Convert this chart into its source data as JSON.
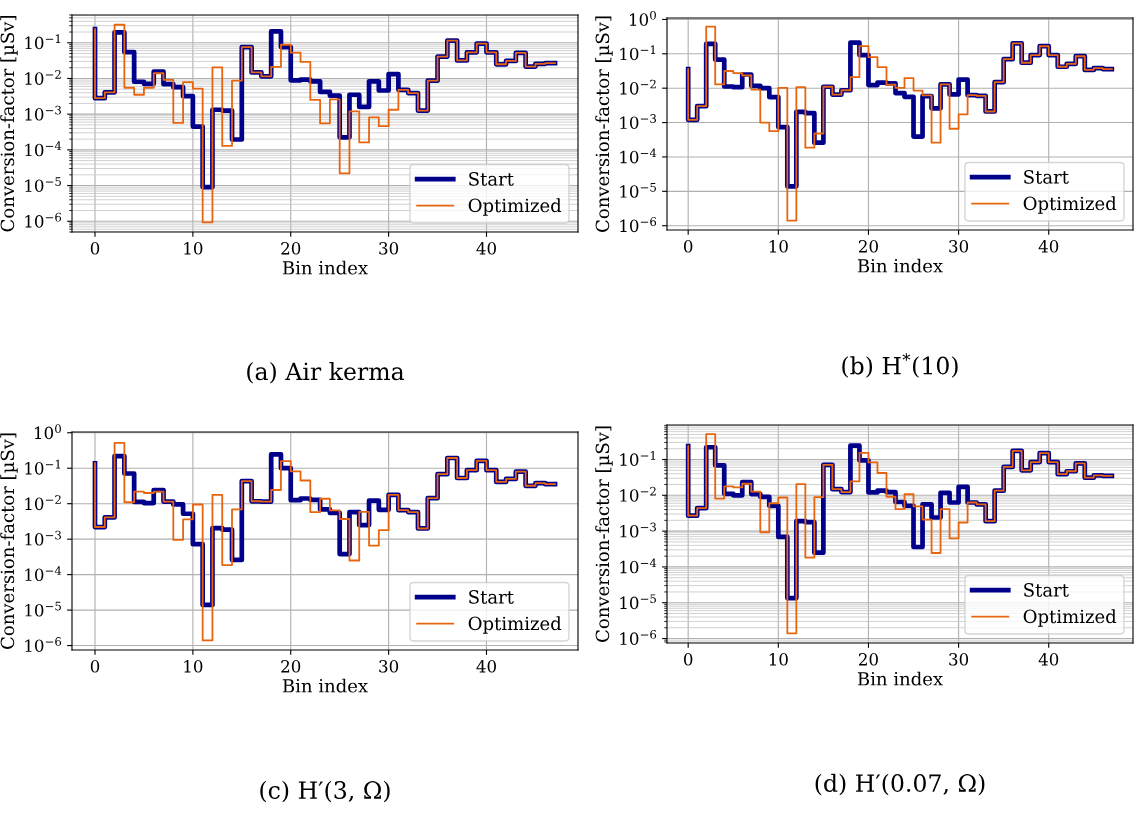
{
  "chart_data": [
    {
      "type": "step",
      "title": "(a) Air kerma",
      "xlabel": "Bin index",
      "ylabel": "Conversion-factor [µSv]",
      "log": "y",
      "grid": true,
      "legend": "bottom right",
      "x": [
        0,
        1,
        2,
        3,
        4,
        5,
        6,
        7,
        8,
        9,
        10,
        11,
        12,
        13,
        14,
        15,
        16,
        17,
        18,
        19,
        20,
        21,
        22,
        23,
        24,
        25,
        26,
        27,
        28,
        29,
        30,
        31,
        32,
        33,
        34,
        35,
        36,
        37,
        38,
        39,
        40,
        41,
        42,
        43,
        44,
        45,
        46,
        47
      ],
      "xlim": [
        -2.35,
        49.35
      ],
      "xticks": [
        0,
        10,
        20,
        30,
        40
      ],
      "ylim": [
        5e-07,
        0.6
      ],
      "yticks": [
        {
          "value": 1e-06,
          "label": "10$^{−6}$"
        },
        {
          "value": 1e-05,
          "label": "10$^{−5}$"
        },
        {
          "value": 0.0001,
          "label": "10$^{−4}$"
        },
        {
          "value": 0.001,
          "label": "10$^{−3}$"
        },
        {
          "value": 0.01,
          "label": "10$^{−2}$"
        },
        {
          "value": 0.1,
          "label": "10$^{−1}$"
        }
      ],
      "series": [
        {
          "name": "Start",
          "color": "#00008b",
          "values": [
            0.24,
            0.0028,
            0.0041,
            0.195,
            0.055,
            0.0081,
            0.0071,
            0.0155,
            0.0069,
            0.0057,
            0.0032,
            0.00045,
            9.1e-06,
            0.00133,
            0.00126,
            0.000195,
            0.076,
            0.0148,
            0.0115,
            0.21,
            0.076,
            0.0089,
            0.0093,
            0.0083,
            0.0042,
            0.0033,
            0.000224,
            0.0035,
            0.0016,
            0.0083,
            0.0046,
            0.0133,
            0.0048,
            0.0039,
            0.00126,
            0.0087,
            0.041,
            0.115,
            0.032,
            0.054,
            0.095,
            0.054,
            0.025,
            0.031,
            0.052,
            0.0215,
            0.0257,
            0.027
          ]
        },
        {
          "name": "Optimized",
          "color": "#e8650f",
          "values": [
            0.24,
            0.0028,
            0.0041,
            0.32,
            0.0055,
            0.0035,
            0.0055,
            0.014,
            0.0091,
            0.00057,
            0.0079,
            0.0052,
            9.3e-07,
            0.0205,
            0.000129,
            0.0087,
            0.076,
            0.0148,
            0.0115,
            0.021,
            0.088,
            0.053,
            0.029,
            0.0025,
            0.00055,
            0.0026,
            2.2e-05,
            0.0012,
            0.000162,
            0.00081,
            0.00046,
            0.00133,
            0.0048,
            0.0039,
            0.00126,
            0.0087,
            0.041,
            0.115,
            0.032,
            0.054,
            0.095,
            0.054,
            0.025,
            0.031,
            0.052,
            0.0215,
            0.0257,
            0.027
          ]
        }
      ]
    },
    {
      "type": "step",
      "title": "(b) H$^{*}$(10)",
      "xlabel": "Bin index",
      "ylabel": "Conversion-factor [µSv]",
      "log": "y",
      "grid": true,
      "legend": "bottom right",
      "x": [
        0,
        1,
        2,
        3,
        4,
        5,
        6,
        7,
        8,
        9,
        10,
        11,
        12,
        13,
        14,
        15,
        16,
        17,
        18,
        19,
        20,
        21,
        22,
        23,
        24,
        25,
        26,
        27,
        28,
        29,
        30,
        31,
        32,
        33,
        34,
        35,
        36,
        37,
        38,
        39,
        40,
        41,
        42,
        43,
        44,
        45,
        46,
        47
      ],
      "xlim": [
        -2.35,
        49.35
      ],
      "xticks": [
        0,
        10,
        20,
        30,
        40
      ],
      "ylim": [
        7.5e-07,
        1.1
      ],
      "yticks": [
        {
          "value": 1e-06,
          "label": "10$^{−6}$"
        },
        {
          "value": 1e-05,
          "label": "10$^{−5}$"
        },
        {
          "value": 0.0001,
          "label": "10$^{−4}$"
        },
        {
          "value": 0.001,
          "label": "10$^{−3}$"
        },
        {
          "value": 0.01,
          "label": "10$^{−2}$"
        },
        {
          "value": 0.1,
          "label": "10$^{−1}$"
        },
        {
          "value": 1,
          "label": "10$^{0}$"
        }
      ],
      "series": [
        {
          "name": "Start",
          "color": "#00008b",
          "values": [
            0.036,
            0.0012,
            0.003,
            0.195,
            0.068,
            0.0112,
            0.0107,
            0.025,
            0.0117,
            0.01,
            0.0055,
            0.00074,
            1.4e-05,
            0.00204,
            0.00188,
            0.00026,
            0.011,
            0.0065,
            0.0087,
            0.21,
            0.092,
            0.0123,
            0.0145,
            0.0138,
            0.0072,
            0.0056,
            0.00039,
            0.0059,
            0.0026,
            0.0129,
            0.0066,
            0.0178,
            0.0063,
            0.006,
            0.0021,
            0.015,
            0.07,
            0.2,
            0.055,
            0.092,
            0.166,
            0.092,
            0.042,
            0.051,
            0.085,
            0.034,
            0.0385,
            0.036
          ]
        },
        {
          "name": "Optimized",
          "color": "#e8650f",
          "values": [
            0.036,
            0.0012,
            0.003,
            0.62,
            0.0129,
            0.0316,
            0.0275,
            0.0234,
            0.0091,
            0.001,
            0.00056,
            0.0102,
            1.4e-06,
            0.0107,
            0.000186,
            0.00048,
            0.011,
            0.0065,
            0.0087,
            0.021,
            0.168,
            0.08,
            0.041,
            0.0126,
            0.0102,
            0.0195,
            0.0085,
            0.0062,
            0.00026,
            0.0129,
            0.00066,
            0.00174,
            0.0063,
            0.006,
            0.0021,
            0.015,
            0.07,
            0.2,
            0.055,
            0.092,
            0.166,
            0.092,
            0.042,
            0.051,
            0.085,
            0.034,
            0.0385,
            0.036
          ]
        }
      ]
    },
    {
      "type": "step",
      "title": "(c) H′(3, Ω)",
      "xlabel": "Bin index",
      "ylabel": "Conversion-factor [µSv]",
      "log": "y",
      "grid": true,
      "legend": "bottom right",
      "x": [
        0,
        1,
        2,
        3,
        4,
        5,
        6,
        7,
        8,
        9,
        10,
        11,
        12,
        13,
        14,
        15,
        16,
        17,
        18,
        19,
        20,
        21,
        22,
        23,
        24,
        25,
        26,
        27,
        28,
        29,
        30,
        31,
        32,
        33,
        34,
        35,
        36,
        37,
        38,
        39,
        40,
        41,
        42,
        43,
        44,
        45,
        46,
        47
      ],
      "xlim": [
        -2.35,
        49.35
      ],
      "xticks": [
        0,
        10,
        20,
        30,
        40
      ],
      "ylim": [
        7.5e-07,
        1.05
      ],
      "yticks": [
        {
          "value": 1e-06,
          "label": "10$^{−6}$"
        },
        {
          "value": 1e-05,
          "label": "10$^{−5}$"
        },
        {
          "value": 0.0001,
          "label": "10$^{−4}$"
        },
        {
          "value": 0.001,
          "label": "10$^{−3}$"
        },
        {
          "value": 0.01,
          "label": "10$^{−2}$"
        },
        {
          "value": 0.1,
          "label": "10$^{−1}$"
        },
        {
          "value": 1,
          "label": "10$^{0}$"
        }
      ],
      "series": [
        {
          "name": "Start",
          "color": "#00008b",
          "values": [
            0.138,
            0.0022,
            0.0041,
            0.22,
            0.071,
            0.0112,
            0.0104,
            0.0243,
            0.0115,
            0.0095,
            0.0052,
            0.00072,
            1.4e-05,
            0.00204,
            0.00186,
            0.00026,
            0.0435,
            0.0117,
            0.0115,
            0.245,
            0.1,
            0.0126,
            0.014,
            0.0129,
            0.0069,
            0.0055,
            0.00038,
            0.0058,
            0.0025,
            0.0122,
            0.0067,
            0.0177,
            0.0066,
            0.0058,
            0.002,
            0.0143,
            0.068,
            0.194,
            0.053,
            0.088,
            0.162,
            0.088,
            0.041,
            0.05,
            0.08,
            0.032,
            0.038,
            0.0355
          ]
        },
        {
          "name": "Optimized",
          "color": "#e8650f",
          "values": [
            0.138,
            0.0022,
            0.0041,
            0.52,
            0.011,
            0.022,
            0.02,
            0.022,
            0.0115,
            0.00096,
            0.0036,
            0.0095,
            1.4e-06,
            0.0178,
            0.000186,
            0.0069,
            0.0435,
            0.0117,
            0.0115,
            0.0243,
            0.159,
            0.082,
            0.045,
            0.0058,
            0.0138,
            0.0065,
            0.0037,
            0.00025,
            0.0059,
            0.00066,
            0.0018,
            0.0177,
            0.0066,
            0.0058,
            0.002,
            0.0143,
            0.068,
            0.194,
            0.053,
            0.088,
            0.162,
            0.088,
            0.041,
            0.05,
            0.08,
            0.032,
            0.038,
            0.0355
          ]
        }
      ]
    },
    {
      "type": "step",
      "title": "(d) H′(0.07, Ω)",
      "xlabel": "Bin index",
      "ylabel": "Conversion-factor [µSv]",
      "log": "y",
      "grid": true,
      "legend": "bottom right",
      "x": [
        0,
        1,
        2,
        3,
        4,
        5,
        6,
        7,
        8,
        9,
        10,
        11,
        12,
        13,
        14,
        15,
        16,
        17,
        18,
        19,
        20,
        21,
        22,
        23,
        24,
        25,
        26,
        27,
        28,
        29,
        30,
        31,
        32,
        33,
        34,
        35,
        36,
        37,
        38,
        39,
        40,
        41,
        42,
        43,
        44,
        45,
        46,
        47
      ],
      "xlim": [
        -2.35,
        49.35
      ],
      "xticks": [
        0,
        10,
        20,
        30,
        40
      ],
      "ylim": [
        7.5e-07,
        0.92
      ],
      "yticks": [
        {
          "value": 1e-06,
          "label": "10$^{−6}$"
        },
        {
          "value": 1e-05,
          "label": "10$^{−5}$"
        },
        {
          "value": 0.0001,
          "label": "10$^{−4}$"
        },
        {
          "value": 0.001,
          "label": "10$^{−3}$"
        },
        {
          "value": 0.01,
          "label": "10$^{−2}$"
        },
        {
          "value": 0.1,
          "label": "10$^{−1}$"
        }
      ],
      "series": [
        {
          "name": "Start",
          "color": "#00008b",
          "values": [
            0.237,
            0.0027,
            0.0044,
            0.22,
            0.069,
            0.011,
            0.01,
            0.0234,
            0.0108,
            0.0091,
            0.0051,
            0.00069,
            1.35e-05,
            0.0019,
            0.00178,
            0.00025,
            0.071,
            0.0148,
            0.0123,
            0.245,
            0.095,
            0.012,
            0.0135,
            0.0123,
            0.0065,
            0.0051,
            0.00036,
            0.0056,
            0.0024,
            0.0117,
            0.0063,
            0.0172,
            0.0063,
            0.0056,
            0.0019,
            0.0135,
            0.062,
            0.175,
            0.05,
            0.085,
            0.151,
            0.085,
            0.039,
            0.047,
            0.078,
            0.031,
            0.036,
            0.0347
          ]
        },
        {
          "name": "Optimized",
          "color": "#e8650f",
          "values": [
            0.237,
            0.0027,
            0.0044,
            0.51,
            0.0081,
            0.0178,
            0.0166,
            0.021,
            0.0126,
            0.00093,
            0.006,
            0.0087,
            1.4e-06,
            0.0205,
            0.000182,
            0.0089,
            0.071,
            0.0148,
            0.0123,
            0.0245,
            0.154,
            0.083,
            0.042,
            0.0091,
            0.0041,
            0.0107,
            0.0049,
            0.0021,
            0.000245,
            0.0041,
            0.00063,
            0.00174,
            0.0063,
            0.0056,
            0.0019,
            0.0135,
            0.062,
            0.175,
            0.05,
            0.085,
            0.151,
            0.085,
            0.039,
            0.047,
            0.078,
            0.031,
            0.036,
            0.0347
          ]
        }
      ]
    }
  ]
}
